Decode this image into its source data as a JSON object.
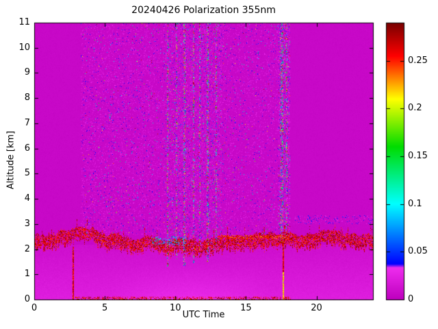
{
  "chart_data": {
    "type": "heatmap",
    "title": "20240426 Polarization 355nm",
    "xlabel": "UTC Time",
    "ylabel": "Altitude [km]",
    "xlim": [
      0,
      24
    ],
    "ylim": [
      0,
      11
    ],
    "xticks": [
      0,
      5,
      10,
      15,
      20
    ],
    "xtick_labels": [
      "0",
      "5",
      "10",
      "15",
      "20"
    ],
    "yticks": [
      0,
      1,
      2,
      3,
      4,
      5,
      6,
      7,
      8,
      9,
      10,
      11
    ],
    "ytick_labels": [
      "0",
      "1",
      "2",
      "3",
      "4",
      "5",
      "6",
      "7",
      "8",
      "9",
      "10",
      "11"
    ],
    "grid": false,
    "colorbar": {
      "min": 0,
      "max": 0.29,
      "ticks": [
        0,
        0.05,
        0.1,
        0.15,
        0.2,
        0.25
      ],
      "tick_labels": [
        "0",
        "0.05",
        "0.1",
        "0.15",
        "0.2",
        "0.25"
      ],
      "stops": [
        [
          0,
          "#bf00bf"
        ],
        [
          0.033,
          "#ee2dee"
        ],
        [
          0.037,
          "#0000ff"
        ],
        [
          0.1,
          "#00ffff"
        ],
        [
          0.16,
          "#00dc00"
        ],
        [
          0.21,
          "#ffff00"
        ],
        [
          0.255,
          "#ff0000"
        ],
        [
          0.29,
          "#780000"
        ]
      ]
    },
    "features": {
      "background_value": 0.006,
      "low_haze": {
        "y_top": 2.2,
        "base": 0.01,
        "grad": 0.012,
        "blob": {
          "x": [
            5.5,
            16.5
          ],
          "y_top": 1.45,
          "amp": 0.008
        }
      },
      "noise_bands": [
        {
          "x": [
            3.3,
            9.3
          ],
          "y": [
            2.55,
            11
          ],
          "density": 0.13,
          "p_mid": 0.05,
          "p_high": 0.02
        },
        {
          "x": [
            9.3,
            13.3
          ],
          "y": [
            2.0,
            11
          ],
          "density": 0.2,
          "p_mid": 0.1,
          "p_high": 0.05
        },
        {
          "x": [
            13.3,
            17.3
          ],
          "y": [
            2.55,
            11
          ],
          "density": 0.11,
          "p_mid": 0.05,
          "p_high": 0.02
        },
        {
          "x": [
            17.3,
            18.15
          ],
          "y": [
            2.3,
            11
          ],
          "density": 0.3,
          "p_mid": 0.12,
          "p_high": 0.08
        }
      ],
      "streaks": [
        {
          "x": 9.45,
          "w": 0.12,
          "y": [
            1.3,
            11
          ],
          "density": 0.45
        },
        {
          "x": 10.1,
          "w": 0.1,
          "y": [
            1.6,
            11
          ],
          "density": 0.35
        },
        {
          "x": 10.65,
          "w": 0.14,
          "y": [
            1.3,
            11
          ],
          "density": 0.5
        },
        {
          "x": 11.3,
          "w": 0.12,
          "y": [
            1.4,
            11
          ],
          "density": 0.5
        },
        {
          "x": 11.75,
          "w": 0.1,
          "y": [
            1.8,
            11
          ],
          "density": 0.4
        },
        {
          "x": 12.3,
          "w": 0.14,
          "y": [
            1.5,
            11
          ],
          "density": 0.5
        },
        {
          "x": 12.9,
          "w": 0.1,
          "y": [
            2.0,
            11
          ],
          "density": 0.35
        },
        {
          "x": 17.55,
          "w": 0.18,
          "y": [
            2.3,
            11
          ],
          "density": 0.5
        },
        {
          "x": 17.9,
          "w": 0.12,
          "y": [
            2.3,
            11
          ],
          "density": 0.4
        }
      ],
      "boundary_layer": {
        "top0": 2.55,
        "jitter": 0.1,
        "range": [
          2.25,
          2.88
        ],
        "thickness": 0.5,
        "density": 0.62,
        "v": [
          0.24,
          0.29
        ]
      },
      "thin_layer": {
        "x": [
          13.0,
          18.1
        ],
        "y": [
          2.42,
          2.56
        ],
        "density": 0.5,
        "v": [
          0.22,
          0.28
        ]
      },
      "cyan_patch": {
        "x": [
          8.3,
          10.8
        ],
        "y": [
          2.15,
          2.5
        ],
        "density": 0.22,
        "v": [
          0.05,
          0.12
        ]
      },
      "right_layer": {
        "x": [
          18.3,
          24
        ],
        "y": [
          3.0,
          3.35
        ],
        "density": 0.12,
        "v": [
          0.012,
          0.05
        ]
      },
      "ground_line": {
        "x": [
          2.9,
          18.2
        ],
        "y": [
          0,
          0.12
        ],
        "density": 0.4,
        "v": [
          0.24,
          0.29
        ]
      },
      "cal_lines": [
        {
          "x": 2.77,
          "w": 0.1,
          "y": [
            0,
            2.1
          ],
          "density": 0.92,
          "v": [
            0.24,
            0.29
          ]
        },
        {
          "x": 17.66,
          "w": 0.12,
          "y": [
            0,
            2.3
          ],
          "density": 0.92,
          "v": [
            0.24,
            0.29
          ],
          "bright_below": 1.1
        }
      ]
    }
  }
}
